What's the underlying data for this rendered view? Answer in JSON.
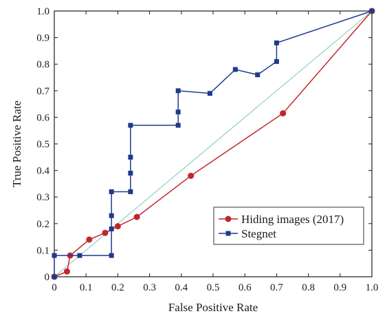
{
  "chart_data": {
    "type": "line",
    "title": "",
    "xlabel": "False Positive Rate",
    "ylabel": "True Positive Rate",
    "xlim": [
      0,
      1
    ],
    "ylim": [
      0,
      1
    ],
    "xticks": [
      "0",
      "0.1",
      "0.2",
      "0.3",
      "0.4",
      "0.5",
      "0.6",
      "0.7",
      "0.8",
      "0.9",
      "1.0"
    ],
    "yticks": [
      "0",
      "0.1",
      "0.2",
      "0.3",
      "0.4",
      "0.5",
      "0.6",
      "0.7",
      "0.8",
      "0.9",
      "1.0"
    ],
    "grid": false,
    "legend_position": "bottom-right",
    "series": [
      {
        "name": "Hiding images (2017)",
        "color": "#c0272d",
        "marker": "circle",
        "x": [
          0.0,
          0.04,
          0.05,
          0.11,
          0.16,
          0.2,
          0.26,
          0.43,
          0.72,
          1.0
        ],
        "y": [
          0.0,
          0.02,
          0.08,
          0.14,
          0.165,
          0.19,
          0.225,
          0.38,
          0.615,
          1.0
        ]
      },
      {
        "name": "Stegnet",
        "color": "#1f3a8a",
        "marker": "square",
        "x": [
          0.0,
          0.0,
          0.08,
          0.18,
          0.18,
          0.18,
          0.18,
          0.24,
          0.24,
          0.24,
          0.24,
          0.39,
          0.39,
          0.39,
          0.49,
          0.57,
          0.64,
          0.7,
          0.7,
          1.0
        ],
        "y": [
          0.0,
          0.08,
          0.08,
          0.08,
          0.18,
          0.23,
          0.32,
          0.32,
          0.39,
          0.45,
          0.57,
          0.57,
          0.62,
          0.7,
          0.69,
          0.78,
          0.76,
          0.81,
          0.88,
          1.0
        ]
      }
    ],
    "reference_line": {
      "x": [
        0,
        1
      ],
      "y": [
        0,
        1
      ],
      "color": "#a8d8c8"
    }
  }
}
